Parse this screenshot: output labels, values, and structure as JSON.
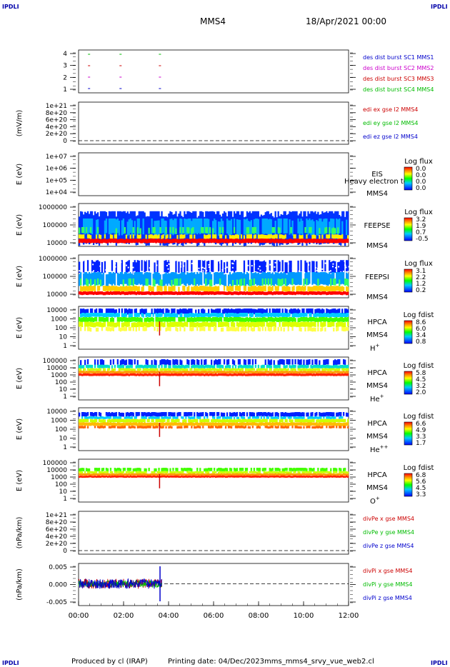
{
  "header": {
    "corner_left_top": "IPDLI",
    "corner_right_top": "IPDLI",
    "corner_left_bottom": "IPDLI",
    "corner_right_bottom": "IPDLI",
    "title": "MMS4",
    "date": "18/Apr/2021 00:00"
  },
  "footer": {
    "produced": "Produced by cl (IRAP)",
    "printing": "Printing date: 04/Dec/2023",
    "file": "mms_mms4_srvy_vue_web2.cl"
  },
  "chart_data": {
    "type": "multi-panel time series",
    "x_ticks": [
      "00:00",
      "02:00",
      "04:00",
      "06:00",
      "08:00",
      "10:00",
      "12:00"
    ],
    "x_range_hours": [
      0,
      12
    ],
    "panels": [
      {
        "id": "burst",
        "ylabel": "",
        "yticks": [
          "4",
          "3",
          "2",
          "1"
        ],
        "legend": [
          {
            "text": "des dist burst SC1 MMS1",
            "color": "#0000cc"
          },
          {
            "text": "des dist burst SC2 MMS2",
            "color": "#cc00cc"
          },
          {
            "text": "des dist burst SC3 MMS3",
            "color": "#cc0000"
          },
          {
            "text": "des dist burst SC4 MMS4",
            "color": "#00bb00"
          }
        ]
      },
      {
        "id": "edi",
        "ylabel": "(mV/m)",
        "yticks": [
          "1e+21",
          "8e+20",
          "6e+20",
          "4e+20",
          "2e+20",
          "0"
        ],
        "legend": [
          {
            "text": "edi ex gse l2 MMS4",
            "color": "#cc0000"
          },
          {
            "text": "edi ey gse l2 MMS4",
            "color": "#00bb00"
          },
          {
            "text": "edi ez gse l2 MMS4",
            "color": "#0000cc"
          }
        ]
      },
      {
        "id": "eis",
        "ylabel": "E (eV)",
        "yticks": [
          "1e+07",
          "1e+06",
          "1e+05",
          "1e+04"
        ],
        "side_labels": [
          "EIS",
          "MMS4"
        ],
        "overflow_label": "Heavy electron to",
        "colorbar_title": "Log flux",
        "colorbar_ticks": [
          "0.0",
          "0.0",
          "0.0",
          "0.0"
        ]
      },
      {
        "id": "feepse",
        "ylabel": "E (eV)",
        "yticks": [
          "1000000",
          "100000",
          "10000"
        ],
        "side_labels": [
          "FEEPSE",
          "MMS4"
        ],
        "colorbar_title": "Log flux",
        "colorbar_ticks": [
          "3.2",
          "1.9",
          "0.7",
          "-0.5"
        ]
      },
      {
        "id": "feepsi",
        "ylabel": "E (eV)",
        "yticks": [
          "1000000",
          "100000",
          "10000"
        ],
        "side_labels": [
          "FEEPSI",
          "MMS4"
        ],
        "colorbar_title": "Log flux",
        "colorbar_ticks": [
          "3.1",
          "2.2",
          "1.2",
          "0.2"
        ]
      },
      {
        "id": "hpca_h",
        "ylabel": "E (eV)",
        "yticks": [
          "10000",
          "1000",
          "100",
          "10",
          "1"
        ],
        "side_labels": [
          "HPCA",
          "MMS4"
        ],
        "species": "H",
        "species_sup": "+",
        "colorbar_title": "Log fdist",
        "colorbar_ticks": [
          "8.6",
          "6.0",
          "3.4",
          "0.8"
        ]
      },
      {
        "id": "hpca_he",
        "ylabel": "E (eV)",
        "yticks": [
          "100000",
          "10000",
          "1000",
          "100",
          "10",
          "1"
        ],
        "side_labels": [
          "HPCA",
          "MMS4"
        ],
        "species": "He",
        "species_sup": "+",
        "colorbar_title": "Log fdist",
        "colorbar_ticks": [
          "5.8",
          "4.5",
          "3.2",
          "2.0"
        ]
      },
      {
        "id": "hpca_hepp",
        "ylabel": "E (eV)",
        "yticks": [
          "10000",
          "1000",
          "100",
          "10",
          "1"
        ],
        "side_labels": [
          "HPCA",
          "MMS4"
        ],
        "species": "He",
        "species_sup": "++",
        "colorbar_title": "Log fdist",
        "colorbar_ticks": [
          "6.6",
          "4.9",
          "3.3",
          "1.7"
        ]
      },
      {
        "id": "hpca_o",
        "ylabel": "E (eV)",
        "yticks": [
          "100000",
          "10000",
          "1000",
          "100",
          "10",
          "1"
        ],
        "side_labels": [
          "HPCA",
          "MMS4"
        ],
        "species": "O",
        "species_sup": "+",
        "colorbar_title": "Log fdist",
        "colorbar_ticks": [
          "6.8",
          "5.6",
          "4.5",
          "3.3"
        ]
      },
      {
        "id": "divpe",
        "ylabel": "(nPa/km)",
        "yticks": [
          "1e+21",
          "8e+20",
          "6e+20",
          "4e+20",
          "2e+20",
          "0"
        ],
        "legend": [
          {
            "text": "divPe x gse MMS4",
            "color": "#cc0000"
          },
          {
            "text": "divPe y gse MMS4",
            "color": "#00bb00"
          },
          {
            "text": "divPe z gse MMS4",
            "color": "#0000cc"
          }
        ]
      },
      {
        "id": "divpi",
        "ylabel": "(nPa/km)",
        "yticks": [
          "0.005",
          "0.000",
          "-0.005"
        ],
        "legend": [
          {
            "text": "divPi x gse MMS4",
            "color": "#cc0000"
          },
          {
            "text": "divPi y gse MMS4",
            "color": "#00bb00"
          },
          {
            "text": "divPi z gse MMS4",
            "color": "#0000cc"
          }
        ]
      }
    ],
    "burst_intervals_hours": [
      0.45,
      1.85,
      3.6
    ]
  }
}
